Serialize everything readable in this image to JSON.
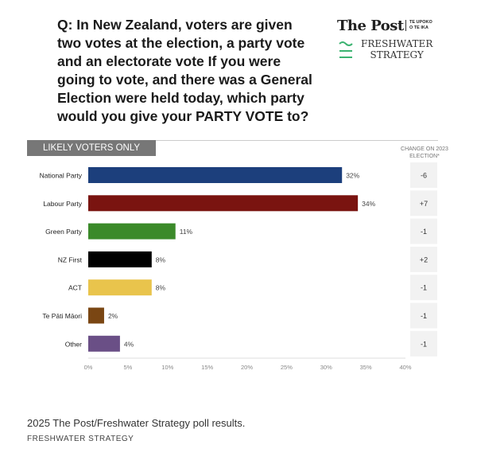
{
  "question": "Q: In New Zealand, voters are given two votes at the election, a party vote and an electorate vote If you were going to vote, and there was a General Election were held today, which party would you give your PARTY VOTE to?",
  "logo": {
    "post": "The Post",
    "sub": "TE UPOKO O TE IKA",
    "fw1": "FRESHWATER",
    "fw2": "STRATEGY"
  },
  "tag": "LIKELY VOTERS ONLY",
  "change_header": "CHANGE ON 2023 ELECTION*",
  "chart_data": {
    "type": "bar",
    "orientation": "horizontal",
    "categories": [
      "National Party",
      "Labour Party",
      "Green Party",
      "NZ First",
      "ACT",
      "Te Pāti Māori",
      "Other"
    ],
    "values": [
      32,
      34,
      11,
      8,
      8,
      2,
      4
    ],
    "labels": [
      "32%",
      "34%",
      "11%",
      "8%",
      "8%",
      "2%",
      "4%"
    ],
    "colors": [
      "#1c3f7c",
      "#7a1410",
      "#3b8a2a",
      "#000000",
      "#e9c44c",
      "#7a4613",
      "#6a4f86"
    ],
    "change": [
      "-6",
      "+7",
      "-1",
      "+2",
      "-1",
      "-1",
      "-1"
    ],
    "xlim": [
      0,
      40
    ],
    "xticks": [
      "0%",
      "5%",
      "10%",
      "15%",
      "20%",
      "25%",
      "30%",
      "35%",
      "40%"
    ]
  },
  "footer": {
    "line1": "2025 The Post/Freshwater Strategy poll results.",
    "line2": "FRESHWATER STRATEGY"
  }
}
